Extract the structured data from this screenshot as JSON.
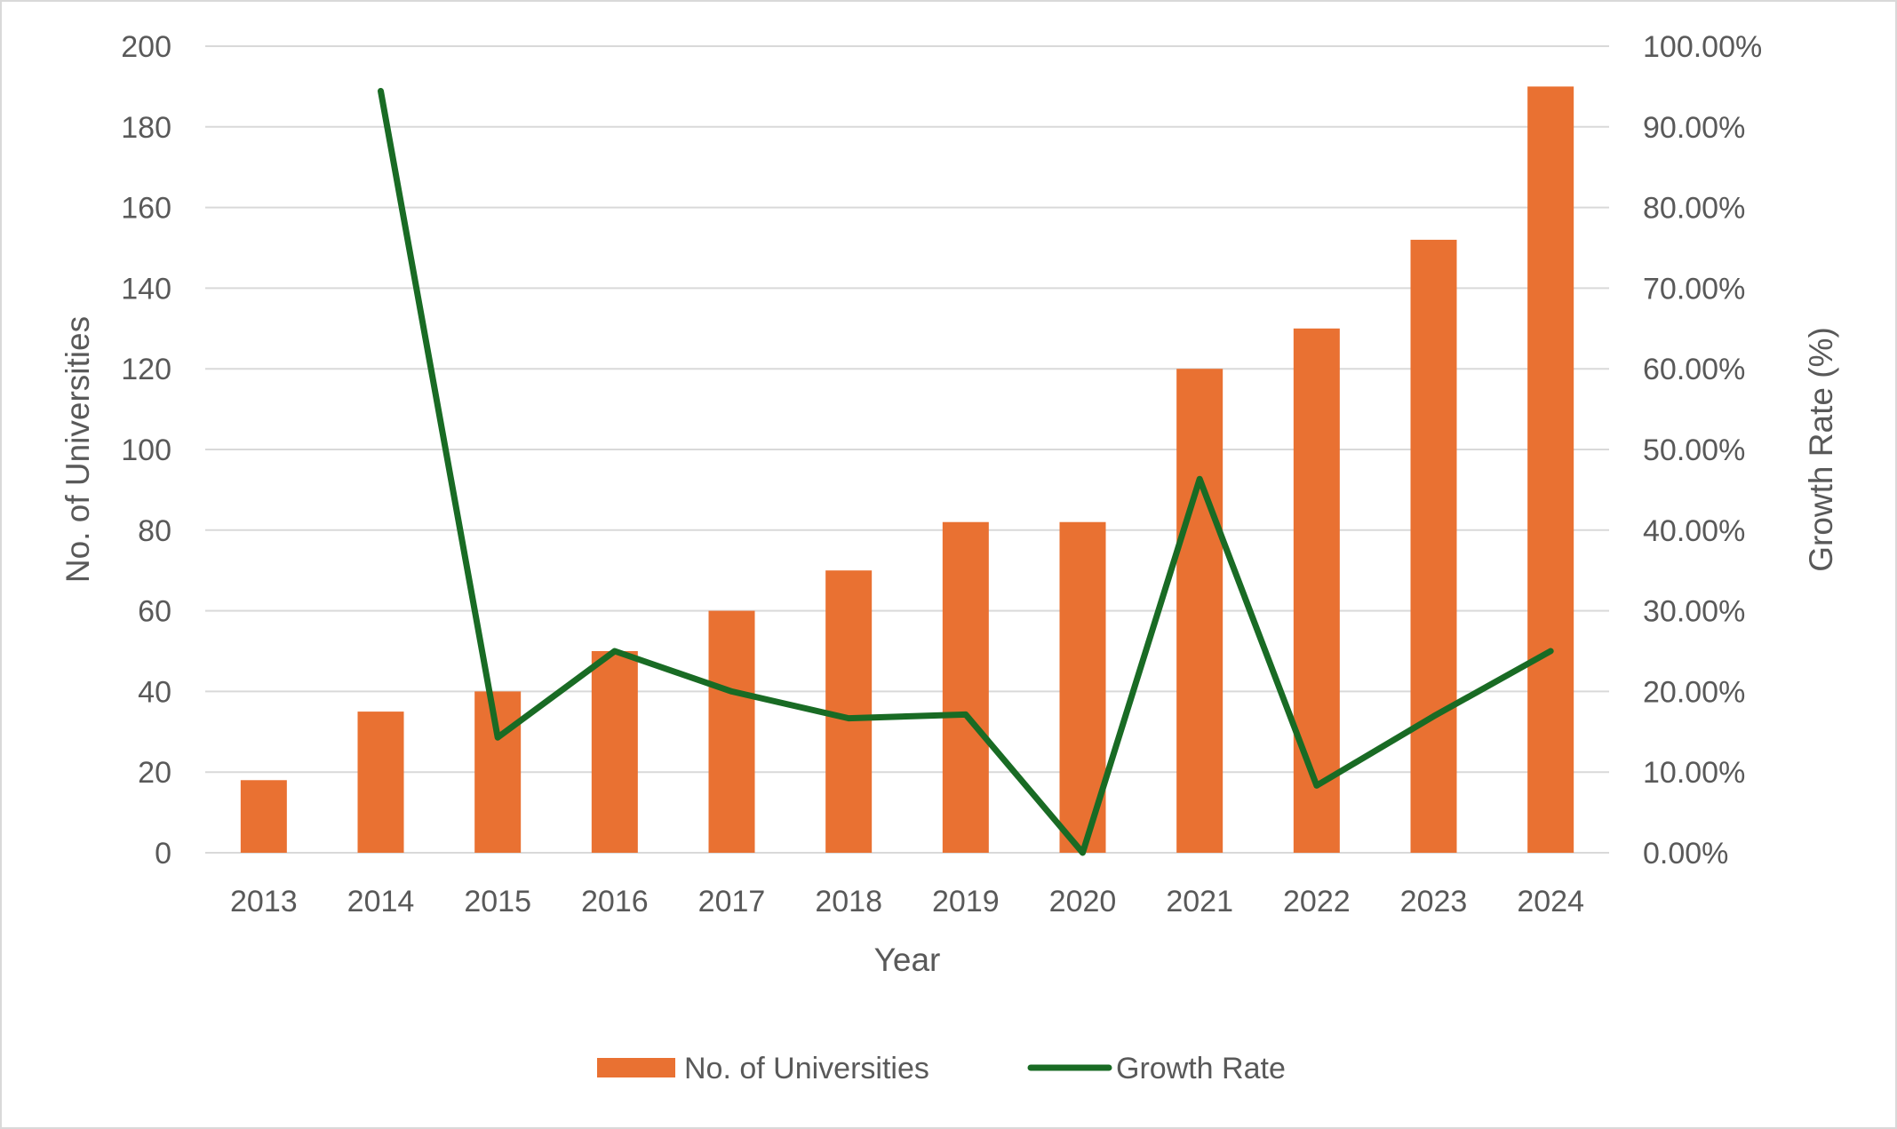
{
  "chart_data": {
    "type": "bar",
    "title": "",
    "xlabel": "Year",
    "ylabel": "No. of Universities",
    "y2label": "Growth Rate (%)",
    "categories": [
      "2013",
      "2014",
      "2015",
      "2016",
      "2017",
      "2018",
      "2019",
      "2020",
      "2021",
      "2022",
      "2023",
      "2024"
    ],
    "ylim": [
      0,
      200
    ],
    "yticks": [
      0,
      20,
      40,
      60,
      80,
      100,
      120,
      140,
      160,
      180,
      200
    ],
    "y2lim": [
      0,
      100
    ],
    "y2ticks": [
      "0.00%",
      "10.00%",
      "20.00%",
      "30.00%",
      "40.00%",
      "50.00%",
      "60.00%",
      "70.00%",
      "80.00%",
      "90.00%",
      "100.00%"
    ],
    "grid": true,
    "legend_position": "bottom",
    "series": [
      {
        "name": "No. of Universities",
        "type": "bar",
        "axis": "left",
        "color": "#E97132",
        "values": [
          18,
          35,
          40,
          50,
          60,
          70,
          82,
          82,
          120,
          130,
          152,
          190
        ]
      },
      {
        "name": "Growth Rate",
        "type": "line",
        "axis": "right",
        "color": "#196B24",
        "values": [
          null,
          94.44,
          14.29,
          25.0,
          20.0,
          16.67,
          17.14,
          0.0,
          46.34,
          8.33,
          16.92,
          25.0
        ]
      }
    ]
  }
}
